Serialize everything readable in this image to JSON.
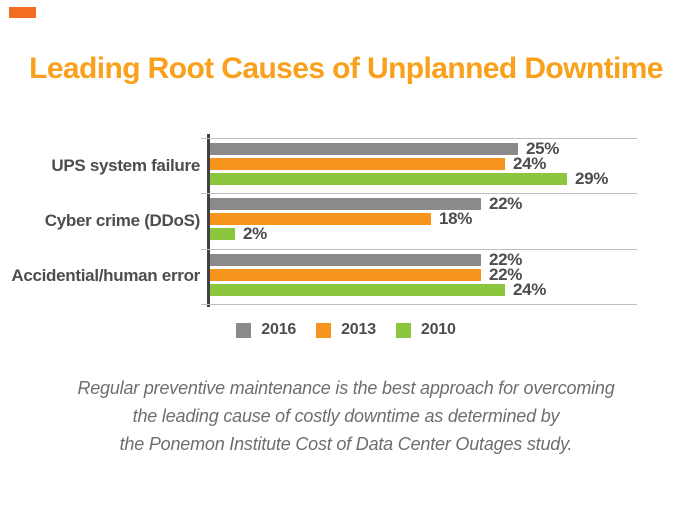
{
  "title": "Leading Root Causes of Unplanned Downtime",
  "colors": {
    "title_orange": "#f9a01c",
    "accent_rect": "#f26d1f",
    "series_gray": "#8a8a8a",
    "series_orange": "#f7941e",
    "series_green": "#8cc63f",
    "text_dark": "#4d4d4f",
    "axis": "#414042",
    "grid": "#bdbfc1",
    "footer_gray": "#6d6e71"
  },
  "chart_data": {
    "type": "bar",
    "orientation": "horizontal",
    "title": "Leading Root Causes of Unplanned Downtime",
    "categories": [
      "UPS system failure",
      "Cyber crime (DDoS)",
      "Accidential/human error"
    ],
    "series": [
      {
        "name": "2016",
        "color": "#8a8a8a",
        "values": [
          25,
          22,
          22
        ]
      },
      {
        "name": "2013",
        "color": "#f7941e",
        "values": [
          24,
          18,
          22
        ]
      },
      {
        "name": "2010",
        "color": "#8cc63f",
        "values": [
          29,
          2,
          24
        ]
      }
    ],
    "value_suffix": "%",
    "value_labels": [
      [
        "25%",
        "22%",
        "22%"
      ],
      [
        "24%",
        "18%",
        "22%"
      ],
      [
        "29%",
        "2%",
        "24%"
      ]
    ],
    "xlim": [
      0,
      35
    ],
    "grid": "group-separator-lines",
    "legend_position": "bottom"
  },
  "legend_items": [
    "2016",
    "2013",
    "2010"
  ],
  "footer": {
    "lines": [
      "Regular preventive maintenance is the best approach for overcoming",
      "the leading cause of costly downtime as determined by",
      "the Ponemon Institute Cost of Data Center Outages study."
    ]
  }
}
